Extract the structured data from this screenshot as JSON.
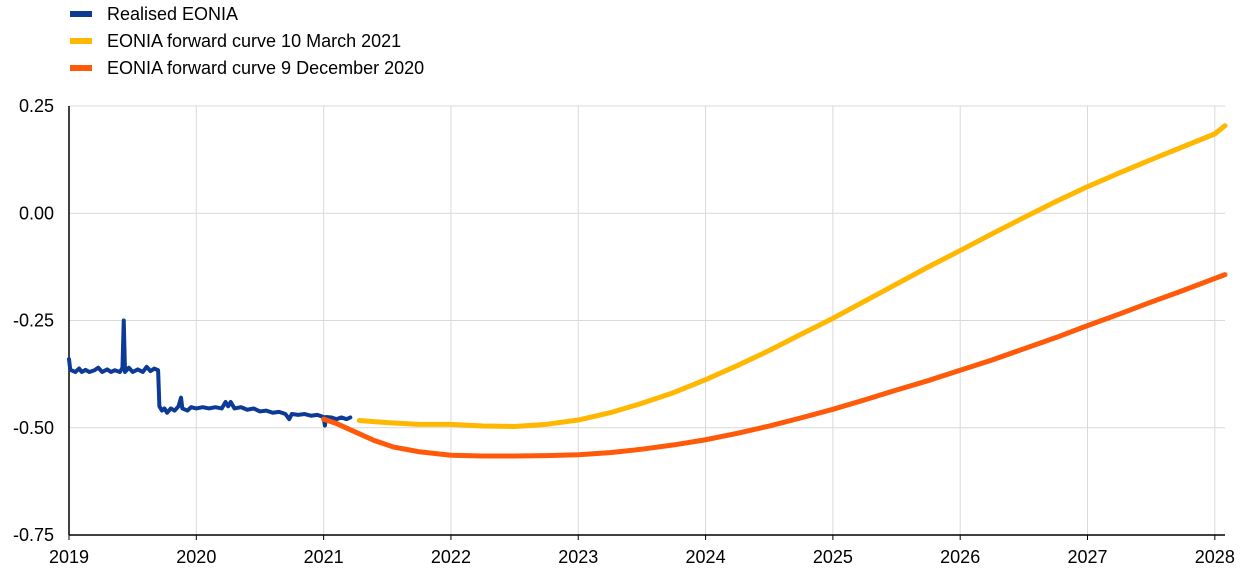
{
  "chart_data": {
    "type": "line",
    "title": "",
    "xlabel": "",
    "ylabel": "",
    "xlim": [
      2019.0,
      2028.08
    ],
    "ylim": [
      -0.75,
      0.25
    ],
    "x_ticks": [
      "2019",
      "2020",
      "2021",
      "2022",
      "2023",
      "2024",
      "2025",
      "2026",
      "2027",
      "2028"
    ],
    "y_ticks": [
      "0.25",
      "0.00",
      "-0.25",
      "-0.50",
      "-0.75"
    ],
    "grid": true,
    "legend": "top-left",
    "colors": {
      "realised": "#0d3a96",
      "march": "#ffb700",
      "december": "#ff5a0a",
      "grid": "#d9d9d9",
      "axis": "#000000"
    },
    "series": [
      {
        "name": "Realised EONIA",
        "color": "#0d3a96",
        "points": [
          [
            2019.0,
            -0.34
          ],
          [
            2019.01,
            -0.365
          ],
          [
            2019.05,
            -0.37
          ],
          [
            2019.08,
            -0.362
          ],
          [
            2019.1,
            -0.37
          ],
          [
            2019.13,
            -0.365
          ],
          [
            2019.16,
            -0.37
          ],
          [
            2019.2,
            -0.366
          ],
          [
            2019.23,
            -0.36
          ],
          [
            2019.26,
            -0.37
          ],
          [
            2019.3,
            -0.364
          ],
          [
            2019.33,
            -0.37
          ],
          [
            2019.36,
            -0.366
          ],
          [
            2019.4,
            -0.37
          ],
          [
            2019.42,
            -0.36
          ],
          [
            2019.43,
            -0.25
          ],
          [
            2019.44,
            -0.37
          ],
          [
            2019.47,
            -0.36
          ],
          [
            2019.5,
            -0.37
          ],
          [
            2019.54,
            -0.364
          ],
          [
            2019.58,
            -0.37
          ],
          [
            2019.61,
            -0.358
          ],
          [
            2019.64,
            -0.368
          ],
          [
            2019.67,
            -0.362
          ],
          [
            2019.7,
            -0.366
          ],
          [
            2019.71,
            -0.45
          ],
          [
            2019.73,
            -0.46
          ],
          [
            2019.75,
            -0.455
          ],
          [
            2019.77,
            -0.465
          ],
          [
            2019.8,
            -0.455
          ],
          [
            2019.83,
            -0.46
          ],
          [
            2019.86,
            -0.45
          ],
          [
            2019.88,
            -0.43
          ],
          [
            2019.89,
            -0.455
          ],
          [
            2019.93,
            -0.46
          ],
          [
            2019.96,
            -0.452
          ],
          [
            2020.0,
            -0.455
          ],
          [
            2020.05,
            -0.452
          ],
          [
            2020.1,
            -0.455
          ],
          [
            2020.15,
            -0.452
          ],
          [
            2020.2,
            -0.455
          ],
          [
            2020.23,
            -0.44
          ],
          [
            2020.25,
            -0.45
          ],
          [
            2020.27,
            -0.44
          ],
          [
            2020.3,
            -0.455
          ],
          [
            2020.35,
            -0.452
          ],
          [
            2020.4,
            -0.458
          ],
          [
            2020.45,
            -0.455
          ],
          [
            2020.5,
            -0.462
          ],
          [
            2020.55,
            -0.46
          ],
          [
            2020.6,
            -0.465
          ],
          [
            2020.65,
            -0.463
          ],
          [
            2020.7,
            -0.468
          ],
          [
            2020.73,
            -0.48
          ],
          [
            2020.75,
            -0.468
          ],
          [
            2020.8,
            -0.47
          ],
          [
            2020.85,
            -0.468
          ],
          [
            2020.9,
            -0.472
          ],
          [
            2020.95,
            -0.47
          ],
          [
            2021.0,
            -0.475
          ],
          [
            2021.01,
            -0.495
          ],
          [
            2021.02,
            -0.475
          ],
          [
            2021.06,
            -0.476
          ],
          [
            2021.1,
            -0.48
          ],
          [
            2021.14,
            -0.476
          ],
          [
            2021.18,
            -0.48
          ],
          [
            2021.21,
            -0.476
          ]
        ]
      },
      {
        "name": "EONIA forward curve 10 March 2021",
        "color": "#ffb700",
        "points": [
          [
            2021.28,
            -0.483
          ],
          [
            2021.5,
            -0.488
          ],
          [
            2021.75,
            -0.492
          ],
          [
            2022.0,
            -0.492
          ],
          [
            2022.25,
            -0.496
          ],
          [
            2022.5,
            -0.497
          ],
          [
            2022.75,
            -0.492
          ],
          [
            2023.0,
            -0.482
          ],
          [
            2023.25,
            -0.465
          ],
          [
            2023.5,
            -0.443
          ],
          [
            2023.75,
            -0.418
          ],
          [
            2024.0,
            -0.388
          ],
          [
            2024.25,
            -0.355
          ],
          [
            2024.5,
            -0.32
          ],
          [
            2024.75,
            -0.282
          ],
          [
            2025.0,
            -0.245
          ],
          [
            2025.25,
            -0.205
          ],
          [
            2025.5,
            -0.165
          ],
          [
            2025.75,
            -0.125
          ],
          [
            2026.0,
            -0.087
          ],
          [
            2026.25,
            -0.048
          ],
          [
            2026.5,
            -0.01
          ],
          [
            2026.75,
            0.027
          ],
          [
            2027.0,
            0.062
          ],
          [
            2027.25,
            0.094
          ],
          [
            2027.5,
            0.125
          ],
          [
            2027.75,
            0.155
          ],
          [
            2028.0,
            0.185
          ],
          [
            2028.08,
            0.204
          ]
        ]
      },
      {
        "name": "EONIA forward curve 9 December 2020",
        "color": "#ff5a0a",
        "points": [
          [
            2021.0,
            -0.48
          ],
          [
            2021.1,
            -0.49
          ],
          [
            2021.25,
            -0.51
          ],
          [
            2021.4,
            -0.53
          ],
          [
            2021.55,
            -0.545
          ],
          [
            2021.75,
            -0.556
          ],
          [
            2022.0,
            -0.564
          ],
          [
            2022.25,
            -0.566
          ],
          [
            2022.5,
            -0.566
          ],
          [
            2022.75,
            -0.565
          ],
          [
            2023.0,
            -0.563
          ],
          [
            2023.25,
            -0.558
          ],
          [
            2023.5,
            -0.55
          ],
          [
            2023.75,
            -0.54
          ],
          [
            2024.0,
            -0.528
          ],
          [
            2024.25,
            -0.513
          ],
          [
            2024.5,
            -0.496
          ],
          [
            2024.75,
            -0.477
          ],
          [
            2025.0,
            -0.457
          ],
          [
            2025.25,
            -0.435
          ],
          [
            2025.5,
            -0.412
          ],
          [
            2025.75,
            -0.39
          ],
          [
            2026.0,
            -0.366
          ],
          [
            2026.25,
            -0.342
          ],
          [
            2026.5,
            -0.316
          ],
          [
            2026.75,
            -0.29
          ],
          [
            2027.0,
            -0.262
          ],
          [
            2027.25,
            -0.235
          ],
          [
            2027.5,
            -0.207
          ],
          [
            2027.75,
            -0.18
          ],
          [
            2028.0,
            -0.152
          ],
          [
            2028.08,
            -0.143
          ]
        ]
      }
    ]
  }
}
